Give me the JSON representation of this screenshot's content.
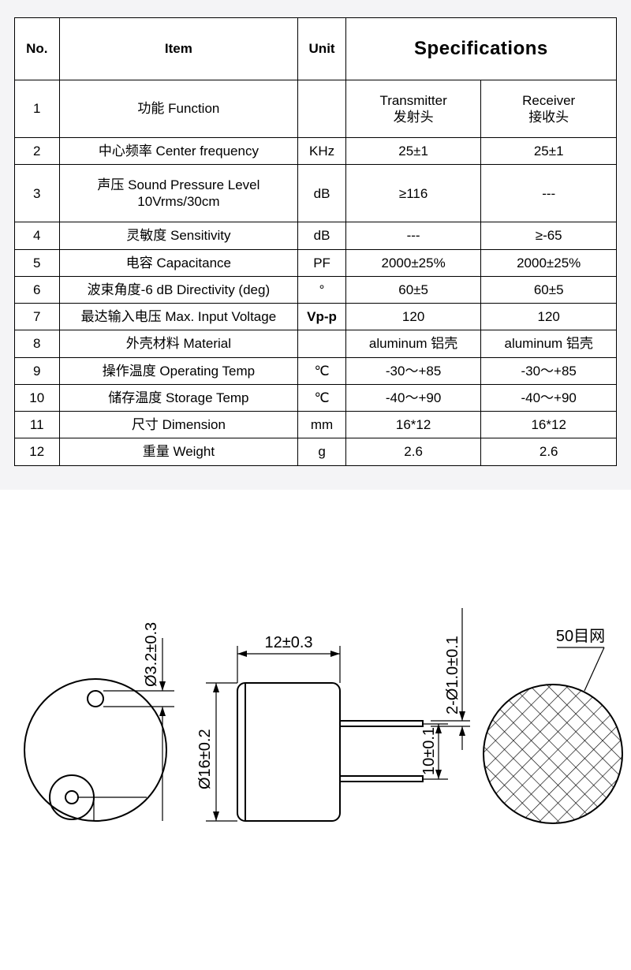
{
  "table": {
    "headers": {
      "no": "No.",
      "item": "Item",
      "unit": "Unit",
      "spec": "Specifications"
    },
    "rows": [
      {
        "no": "1",
        "item": "功能 Function",
        "unit": "",
        "tx": "Transmitter\n发射头",
        "rx": "Receiver\n接收头"
      },
      {
        "no": "2",
        "item": "中心频率 Center frequency",
        "unit": "KHz",
        "tx": "25±1",
        "rx": "25±1"
      },
      {
        "no": "3",
        "item": "声压 Sound Pressure Level\n10Vrms/30cm",
        "unit": "dB",
        "tx": "≥116",
        "rx": "---"
      },
      {
        "no": "4",
        "item": "灵敏度 Sensitivity",
        "unit": "dB",
        "tx": "---",
        "rx": "≥-65"
      },
      {
        "no": "5",
        "item": "电容 Capacitance",
        "unit": "PF",
        "tx": "2000±25%",
        "rx": "2000±25%"
      },
      {
        "no": "6",
        "item": "波束角度-6 dB Directivity (deg)",
        "unit": "°",
        "tx": "60±5",
        "rx": "60±5"
      },
      {
        "no": "7",
        "item": "最达输入电压 Max. Input Voltage",
        "unit": "Vp-p",
        "tx": "120",
        "rx": "120"
      },
      {
        "no": "8",
        "item": "外壳材料 Material",
        "unit": "",
        "tx": "aluminum 铝壳",
        "rx": "aluminum 铝壳"
      },
      {
        "no": "9",
        "item": "操作温度 Operating Temp",
        "unit": "℃",
        "tx": "-30～+85",
        "rx": "-30～+85"
      },
      {
        "no": "10",
        "item": "储存温度 Storage Temp",
        "unit": "℃",
        "tx": "-40～+90",
        "rx": "-40～+90"
      },
      {
        "no": "11",
        "item": "尺寸 Dimension",
        "unit": "mm",
        "tx": "16*12",
        "rx": "16*12"
      },
      {
        "no": "12",
        "item": "重量 Weight",
        "unit": "g",
        "tx": "2.6",
        "rx": "2.6"
      }
    ]
  },
  "dimensions": {
    "hole_dia": "Ø3.2±0.3",
    "body_dia": "Ø16±0.2",
    "body_len": "12±0.3",
    "pin_pitch": "10±0.1",
    "pin_dia": "2-Ø1.0±0.1",
    "mesh_label": "50目网"
  },
  "style": {
    "page_bg": "#f4f4f6",
    "table_bg": "#ffffff",
    "border_color": "#000000",
    "font_size_cell": 17,
    "font_size_spec_header": 24
  }
}
